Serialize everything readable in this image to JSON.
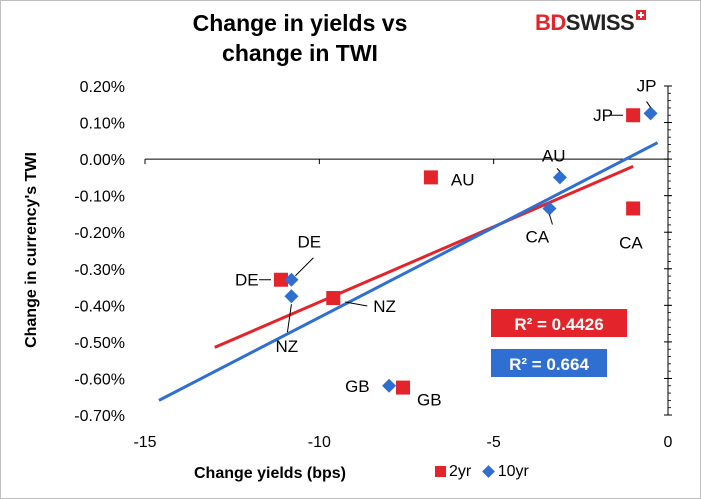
{
  "chart_data": {
    "type": "scatter",
    "title": "Change in yields vs change in TWI",
    "xlabel": "Change yields (bps)",
    "ylabel": "Change in currency's  TWI",
    "xlim": [
      -15,
      0
    ],
    "ylim": [
      -0.7,
      0.2
    ],
    "x_ticks": [
      "-15",
      "-10",
      "-5",
      "0"
    ],
    "y_ticks": [
      "0.20%",
      "0.10%",
      "0.00%",
      "-0.10%",
      "-0.20%",
      "-0.30%",
      "-0.40%",
      "-0.50%",
      "-0.60%",
      "-0.70%"
    ],
    "series": [
      {
        "name": "2yr",
        "marker": "square",
        "color": "#e3242b",
        "points": [
          {
            "label": "JP",
            "x": -1.0,
            "y": 0.12
          },
          {
            "label": "AU",
            "x": -6.8,
            "y": -0.05
          },
          {
            "label": "CA",
            "x": -1.0,
            "y": -0.135
          },
          {
            "label": "DE",
            "x": -11.1,
            "y": -0.33
          },
          {
            "label": "NZ",
            "x": -9.6,
            "y": -0.38
          },
          {
            "label": "GB",
            "x": -7.6,
            "y": -0.625
          }
        ],
        "trendline": {
          "x": [
            -13.0,
            -1.0
          ],
          "y": [
            -0.515,
            -0.02
          ],
          "r2": "R² = 0.4426"
        }
      },
      {
        "name": "10yr",
        "marker": "diamond",
        "color": "#2f6fd1",
        "points": [
          {
            "label": "JP",
            "x": -0.5,
            "y": 0.125
          },
          {
            "label": "AU",
            "x": -3.1,
            "y": -0.05
          },
          {
            "label": "CA",
            "x": -3.4,
            "y": -0.135
          },
          {
            "label": "DE",
            "x": -10.8,
            "y": -0.33
          },
          {
            "label": "NZ",
            "x": -10.8,
            "y": -0.375
          },
          {
            "label": "GB",
            "x": -8.0,
            "y": -0.62
          }
        ],
        "trendline": {
          "x": [
            -14.6,
            -0.3
          ],
          "y": [
            -0.66,
            0.045
          ],
          "r2": "R² = 0.664"
        }
      }
    ],
    "legend": "bottom-right",
    "grid": false
  },
  "branding": {
    "logo_bd": "BD",
    "logo_swiss": "SWISS"
  },
  "legend_labels": {
    "series1": "2yr",
    "series2": "10yr"
  }
}
